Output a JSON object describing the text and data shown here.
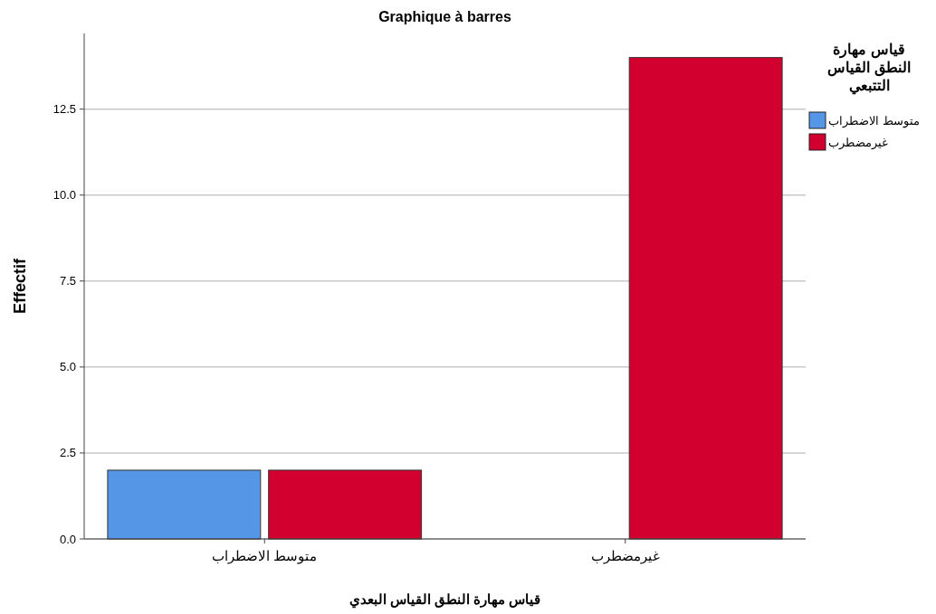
{
  "chart_data": {
    "type": "bar",
    "title": "Graphique à barres",
    "xlabel": "قياس مهارة النطق القياس  البعدي",
    "ylabel": "Effectif",
    "legend_title": "قياس مهارة النطق القياس التتبعي",
    "categories": [
      "متوسط الاضطراب",
      "غيرمضطرب"
    ],
    "series": [
      {
        "name": "متوسط الاضطراب",
        "color": "#5596e6",
        "values": [
          2,
          null
        ]
      },
      {
        "name": "غيرمضطرب",
        "color": "#d2002e",
        "values": [
          2,
          14
        ]
      }
    ],
    "ylim": [
      0,
      14.7
    ],
    "yticks": [
      {
        "value": 0,
        "label": "0.0"
      },
      {
        "value": 2.5,
        "label": "2.5"
      },
      {
        "value": 5,
        "label": "5.0"
      },
      {
        "value": 7.5,
        "label": "7.5"
      },
      {
        "value": 10,
        "label": "10.0"
      },
      {
        "value": 12.5,
        "label": "12.5"
      }
    ],
    "grid": "y",
    "legend": "top right"
  }
}
